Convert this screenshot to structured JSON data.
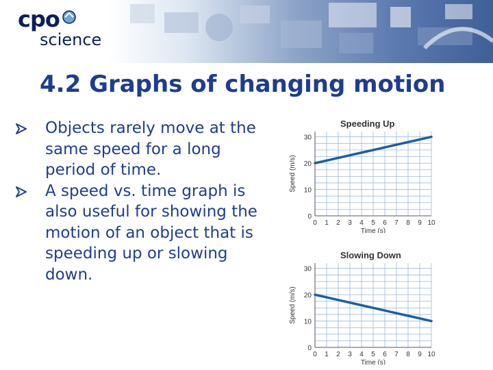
{
  "header": {
    "logo_top": "cpo",
    "logo_bottom": "science",
    "colors": {
      "logo": "#0c1f5a",
      "banner_dark": "#3f5f99"
    }
  },
  "title": "4.2 Graphs of changing motion",
  "bullets": [
    "Objects rarely move at the same speed for a long period of time.",
    "A speed vs. time graph is also useful for showing the motion of an object that is speeding up  or slowing down."
  ],
  "colors": {
    "title": "#1d3d8f",
    "line": "#1a5fa8",
    "grid": "#9bb8dc"
  },
  "chart_data": [
    {
      "type": "line",
      "title": "Speeding Up",
      "xlabel": "Time (s)",
      "ylabel": "Speed (m/s)",
      "x": [
        0,
        1,
        2,
        3,
        4,
        5,
        6,
        7,
        8,
        9,
        10
      ],
      "y": [
        20,
        21,
        22,
        23,
        24,
        25,
        26,
        27,
        28,
        29,
        30
      ],
      "xticks": [
        "0",
        "1",
        "2",
        "3",
        "4",
        "5",
        "6",
        "7",
        "8",
        "9",
        "10"
      ],
      "yticks": [
        "0",
        "10",
        "20",
        "30"
      ],
      "xlim": [
        0,
        10
      ],
      "ylim": [
        0,
        32
      ],
      "grid": true
    },
    {
      "type": "line",
      "title": "Slowing Down",
      "xlabel": "Time (s)",
      "ylabel": "Speed (m/s)",
      "x": [
        0,
        1,
        2,
        3,
        4,
        5,
        6,
        7,
        8,
        9,
        10
      ],
      "y": [
        20,
        19,
        18,
        17,
        16,
        15,
        14,
        13,
        12,
        11,
        10
      ],
      "xticks": [
        "0",
        "1",
        "2",
        "3",
        "4",
        "5",
        "6",
        "7",
        "8",
        "9",
        "10"
      ],
      "yticks": [
        "0",
        "10",
        "20",
        "30"
      ],
      "xlim": [
        0,
        10
      ],
      "ylim": [
        0,
        32
      ],
      "grid": true
    }
  ]
}
